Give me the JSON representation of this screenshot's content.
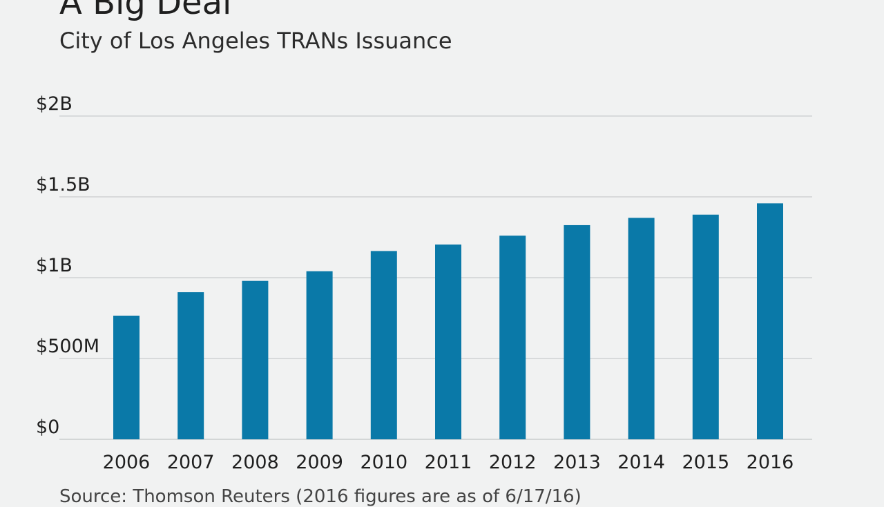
{
  "chart_data": {
    "type": "bar",
    "title": "A Big Deal",
    "subtitle": "City of Los Angeles TRANs Issuance",
    "source": "Source: Thomson Reuters (2016 figures are as of 6/17/16)",
    "categories": [
      "2006",
      "2007",
      "2008",
      "2009",
      "2010",
      "2011",
      "2012",
      "2013",
      "2014",
      "2015",
      "2016"
    ],
    "values": [
      765,
      910,
      980,
      1040,
      1165,
      1205,
      1260,
      1325,
      1370,
      1390,
      1460
    ],
    "value_unit": "millions of dollars",
    "y_ticks": [
      {
        "value": 0,
        "label": "$0"
      },
      {
        "value": 500,
        "label": "$500M"
      },
      {
        "value": 1000,
        "label": "$1B"
      },
      {
        "value": 1500,
        "label": "$1.5B"
      },
      {
        "value": 2000,
        "label": "$2B"
      }
    ],
    "ylim": [
      0,
      2000
    ],
    "grid": true,
    "bar_color": "#0a79a8",
    "grid_color": "#c9cccd",
    "xlabel": "",
    "ylabel": ""
  }
}
